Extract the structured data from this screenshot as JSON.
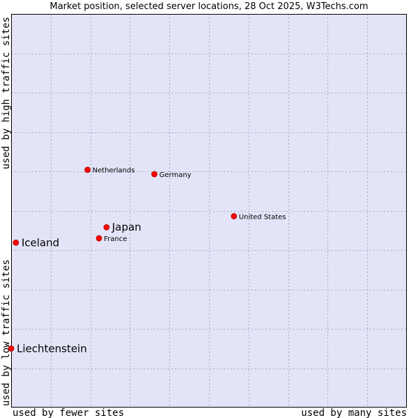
{
  "chart_data": {
    "type": "scatter",
    "title": "Market position, selected server locations, 28 Oct 2025, W3Techs.com",
    "xlabel_left": "used by fewer sites",
    "xlabel_right": "used by many sites",
    "ylabel_bottom": "used by low traffic sites",
    "ylabel_top": "used by high traffic sites",
    "xlim": [
      0,
      10
    ],
    "ylim": [
      0,
      10
    ],
    "grid": true,
    "points": [
      {
        "name": "Netherlands",
        "x": 1.93,
        "y": 6.04,
        "emphasis": false
      },
      {
        "name": "Germany",
        "x": 3.62,
        "y": 5.93,
        "emphasis": false
      },
      {
        "name": "United States",
        "x": 5.63,
        "y": 4.86,
        "emphasis": false
      },
      {
        "name": "Japan",
        "x": 2.41,
        "y": 4.58,
        "emphasis": true
      },
      {
        "name": "France",
        "x": 2.22,
        "y": 4.3,
        "emphasis": false
      },
      {
        "name": "Iceland",
        "x": 0.12,
        "y": 4.19,
        "emphasis": true
      },
      {
        "name": "Liechtenstein",
        "x": 0.0,
        "y": 1.5,
        "emphasis": true
      }
    ]
  },
  "colors": {
    "plot_background": "#e4e4f8",
    "grid": "#a8a8c0",
    "marker": "#ff0000",
    "marker_stroke": "#b00000"
  }
}
